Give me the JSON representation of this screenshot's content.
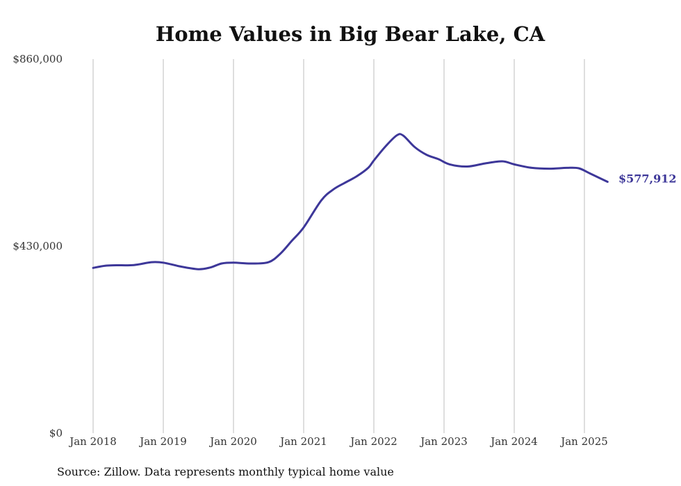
{
  "chart_data": {
    "type": "line",
    "title": "Home Values in Big Bear Lake, CA",
    "xlabel": "",
    "ylabel": "",
    "ylim": [
      0,
      860000
    ],
    "y_ticks": [
      {
        "value": 0,
        "label": "$0"
      },
      {
        "value": 430000,
        "label": "$430,000"
      },
      {
        "value": 860000,
        "label": "$860,000"
      }
    ],
    "x_ticks": [
      {
        "value": 2018,
        "label": "Jan 2018"
      },
      {
        "value": 2019,
        "label": "Jan 2019"
      },
      {
        "value": 2020,
        "label": "Jan 2020"
      },
      {
        "value": 2021,
        "label": "Jan 2021"
      },
      {
        "value": 2022,
        "label": "Jan 2022"
      },
      {
        "value": 2023,
        "label": "Jan 2023"
      },
      {
        "value": 2024,
        "label": "Jan 2024"
      },
      {
        "value": 2025,
        "label": "Jan 2025"
      }
    ],
    "grid": "vertical",
    "line_color": "#3d3799",
    "end_label": "$577,912",
    "series": [
      {
        "x": [
          2018.0,
          2018.17,
          2018.33,
          2018.58,
          2018.83,
          2019.0,
          2019.25,
          2019.5,
          2019.67,
          2019.83,
          2020.0,
          2020.25,
          2020.5,
          2020.67,
          2020.83,
          2021.0,
          2021.25,
          2021.42,
          2021.58,
          2021.75,
          2021.92,
          2022.0,
          2022.17,
          2022.33,
          2022.42,
          2022.58,
          2022.75,
          2022.92,
          2023.08,
          2023.33,
          2023.58,
          2023.83,
          2024.0,
          2024.25,
          2024.5,
          2024.75,
          2024.92,
          2025.08,
          2025.33
        ],
        "y": [
          380000,
          385000,
          386000,
          386500,
          393000,
          392000,
          383000,
          377000,
          381000,
          390000,
          392000,
          390000,
          393000,
          413000,
          442000,
          473000,
          535000,
          560000,
          575000,
          590000,
          610000,
          627000,
          660000,
          685000,
          684000,
          658000,
          640000,
          630000,
          618000,
          613000,
          620000,
          625000,
          618000,
          610000,
          608000,
          610000,
          609000,
          597000,
          577912
        ]
      }
    ]
  },
  "source_note": "Source: Zillow. Data represents monthly typical home value"
}
